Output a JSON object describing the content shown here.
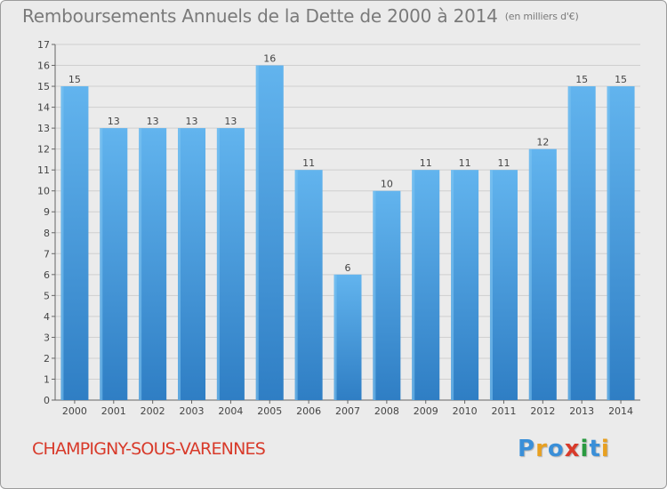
{
  "chart_data": {
    "type": "bar",
    "title": "Remboursements Annuels de la Dette de 2000 à 2014",
    "subtitle": "(en milliers d'€)",
    "categories": [
      "2000",
      "2001",
      "2002",
      "2003",
      "2004",
      "2005",
      "2006",
      "2007",
      "2008",
      "2009",
      "2010",
      "2011",
      "2012",
      "2013",
      "2014"
    ],
    "values": [
      15,
      13,
      13,
      13,
      13,
      16,
      11,
      6,
      10,
      11,
      11,
      11,
      12,
      15,
      15
    ],
    "ylim": [
      0,
      17
    ],
    "yticks": [
      0,
      1,
      2,
      3,
      4,
      5,
      6,
      7,
      8,
      9,
      10,
      11,
      12,
      13,
      14,
      15,
      16,
      17
    ],
    "grid": true,
    "bar_color": "#4a9fe0"
  },
  "footer": {
    "commune": "CHAMPIGNY-SOUS-VARENNES",
    "logo_letters": [
      "P",
      "r",
      "o",
      "x",
      "i",
      "t",
      "i"
    ],
    "logo_colors": [
      "#3a8fd8",
      "#e8a020",
      "#3a8fd8",
      "#d83a2a",
      "#2a9a40",
      "#3a8fd8",
      "#e8a020"
    ]
  }
}
